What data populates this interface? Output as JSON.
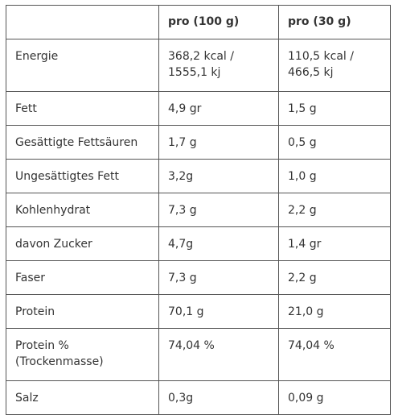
{
  "table": {
    "headers": [
      "",
      "pro (100 g)",
      "pro (30 g)"
    ],
    "rows": [
      {
        "label": "Energie",
        "per100": "368,2 kcal / 1555,1 kj",
        "per30": "110,5 kcal / 466,5 kj"
      },
      {
        "label": "Fett",
        "per100": "4,9 gr",
        "per30": "1,5 g"
      },
      {
        "label": "Gesättigte Fettsäuren",
        "per100": "1,7 g",
        "per30": "0,5 g"
      },
      {
        "label": "Ungesättigtes Fett",
        "per100": "3,2g",
        "per30": "1,0 g"
      },
      {
        "label": "Kohlenhydrat",
        "per100": "7,3 g",
        "per30": "2,2 g"
      },
      {
        "label": "davon Zucker",
        "per100": "4,7g",
        "per30": "1,4 gr"
      },
      {
        "label": "Faser",
        "per100": "7,3 g",
        "per30": "2,2 g"
      },
      {
        "label": "Protein",
        "per100": "70,1 g",
        "per30": "21,0 g"
      },
      {
        "label": "Protein % (Trockenmasse)",
        "per100": "74,04 %",
        "per30": "74,04 %"
      },
      {
        "label": "Salz",
        "per100": "0,3g",
        "per30": "0,09 g"
      }
    ]
  }
}
